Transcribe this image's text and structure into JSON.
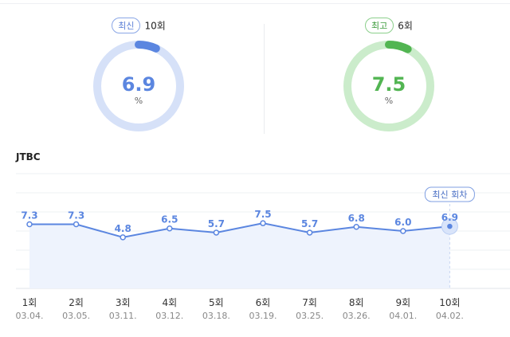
{
  "latest": {
    "badge": "최신",
    "episode": "10회",
    "value": "6.9",
    "unit": "%",
    "fraction": 0.069,
    "color": "#5b86e0",
    "track": "#d6e1f8"
  },
  "best": {
    "badge": "최고",
    "episode": "6회",
    "value": "7.5",
    "unit": "%",
    "fraction": 0.075,
    "color": "#52b552",
    "track": "#cbeccb"
  },
  "chart_data": {
    "type": "line",
    "title": "JTBC",
    "categories": [
      "1회",
      "2회",
      "3회",
      "4회",
      "5회",
      "6회",
      "7회",
      "8회",
      "9회",
      "10회"
    ],
    "dates": [
      "03.04.",
      "03.05.",
      "03.11.",
      "03.12.",
      "03.18.",
      "03.19.",
      "03.25.",
      "03.26.",
      "04.01.",
      "04.02."
    ],
    "values": [
      7.3,
      7.3,
      4.8,
      6.5,
      5.7,
      7.5,
      5.7,
      6.8,
      6.0,
      6.9
    ],
    "labels": [
      "7.3",
      "7.3",
      "4.8",
      "6.5",
      "5.7",
      "7.5",
      "5.7",
      "6.8",
      "6.0",
      "6.9"
    ],
    "ylim": [
      -5,
      17
    ],
    "line_color": "#5b86e0",
    "fill_color": "#eef3fd",
    "latest_callout": "최신 회차"
  }
}
